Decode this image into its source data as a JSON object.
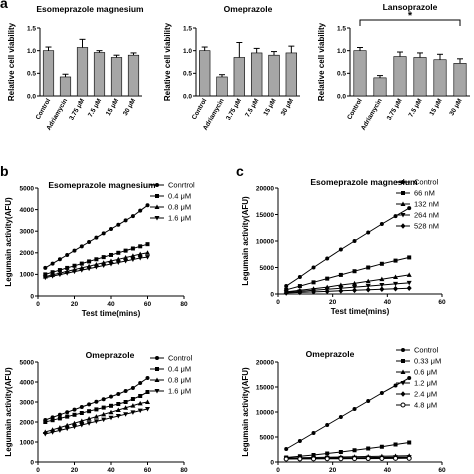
{
  "panel_labels": {
    "a": "a",
    "b": "b",
    "c": "c"
  },
  "chart_data": [
    {
      "type": "bar",
      "panel": "a",
      "title": "Esomeprazole magnesium",
      "ylabel": "Relative cell viability",
      "categories": [
        "Control",
        "Adriamycin",
        "3.75 μM",
        "7.5 μM",
        "15 μM",
        "30 μM"
      ],
      "values": [
        1.0,
        0.42,
        1.07,
        0.96,
        0.85,
        0.9
      ],
      "errors": [
        0.08,
        0.06,
        0.18,
        0.04,
        0.05,
        0.05
      ],
      "ylim": [
        0,
        1.5
      ],
      "yticks": [
        "0.0",
        "0.5",
        "1.0",
        "1.5"
      ],
      "color": "#a6a6a6"
    },
    {
      "type": "bar",
      "panel": "a",
      "title": "Omeprazole",
      "ylabel": "Relative cell viability",
      "categories": [
        "Control",
        "Adriamycin",
        "3.75 μM",
        "7.5 μM",
        "15 μM",
        "30 μM"
      ],
      "values": [
        1.0,
        0.42,
        0.85,
        0.95,
        0.9,
        0.95
      ],
      "errors": [
        0.08,
        0.05,
        0.33,
        0.1,
        0.08,
        0.15
      ],
      "ylim": [
        0,
        1.5
      ],
      "yticks": [
        "0.0",
        "0.5",
        "1.0",
        "1.5"
      ],
      "color": "#a6a6a6"
    },
    {
      "type": "bar",
      "panel": "a",
      "title": "Lansoprazole",
      "ylabel": "Relative cell viability",
      "categories": [
        "Control",
        "Adriamycin",
        "3.75 μM",
        "7.5 μM",
        "15 μM",
        "30 μM"
      ],
      "values": [
        1.0,
        0.4,
        0.87,
        0.85,
        0.8,
        0.72
      ],
      "errors": [
        0.07,
        0.05,
        0.1,
        0.1,
        0.12,
        0.1
      ],
      "ylim": [
        0,
        1.5
      ],
      "yticks": [
        "0.0",
        "0.5",
        "1.0",
        "1.5"
      ],
      "color": "#a6a6a6",
      "annotation": "*"
    },
    {
      "type": "line",
      "panel": "b",
      "title": "Esomeprazole magnesium",
      "xlabel": "Test time(mins)",
      "ylabel": "Legumain activity(AFU)",
      "xlim": [
        0,
        80
      ],
      "ylim": [
        0,
        5000
      ],
      "xticks": [
        "0",
        "20",
        "40",
        "60",
        "80"
      ],
      "yticks": [
        "0",
        "1000",
        "2000",
        "3000",
        "4000",
        "5000"
      ],
      "x": [
        4,
        8,
        12,
        16,
        20,
        24,
        28,
        32,
        36,
        40,
        44,
        48,
        52,
        56,
        60
      ],
      "series": [
        {
          "name": "Conrtrol",
          "marker": "circle",
          "values": [
            1300,
            1500,
            1700,
            1900,
            2100,
            2300,
            2500,
            2700,
            2900,
            3100,
            3300,
            3500,
            3700,
            3950,
            4200
          ]
        },
        {
          "name": "0.4 μM",
          "marker": "square",
          "values": [
            1000,
            1100,
            1200,
            1300,
            1400,
            1500,
            1600,
            1700,
            1800,
            1900,
            2000,
            2100,
            2200,
            2300,
            2400
          ]
        },
        {
          "name": "0.8 μM",
          "marker": "triangle-up",
          "values": [
            900,
            980,
            1060,
            1140,
            1220,
            1300,
            1380,
            1460,
            1540,
            1620,
            1700,
            1780,
            1860,
            1940,
            2000
          ]
        },
        {
          "name": "1.6 μM",
          "marker": "triangle-down",
          "values": [
            850,
            920,
            990,
            1060,
            1130,
            1200,
            1270,
            1340,
            1410,
            1480,
            1550,
            1620,
            1690,
            1760,
            1800
          ]
        }
      ]
    },
    {
      "type": "line",
      "panel": "c",
      "title": "Esomeprazole magnesium",
      "xlabel": "Test time(mins)",
      "ylabel": "Legumain activity(AFU)",
      "xlim": [
        0,
        60
      ],
      "ylim": [
        0,
        20000
      ],
      "xticks": [
        "0",
        "20",
        "40",
        "60"
      ],
      "yticks": [
        "0",
        "5000",
        "10000",
        "15000",
        "20000"
      ],
      "x": [
        3,
        8,
        13,
        18,
        23,
        28,
        33,
        38,
        43,
        48
      ],
      "series": [
        {
          "name": "Control",
          "marker": "circle",
          "values": [
            1500,
            3200,
            5000,
            6700,
            8400,
            10000,
            11600,
            13200,
            14700,
            16200
          ]
        },
        {
          "name": "66 nM",
          "marker": "square",
          "values": [
            800,
            1500,
            2200,
            2900,
            3600,
            4300,
            5000,
            5700,
            6300,
            6900
          ]
        },
        {
          "name": "132 nM",
          "marker": "triangle-up",
          "values": [
            400,
            700,
            1000,
            1300,
            1700,
            2000,
            2400,
            2800,
            3200,
            3600
          ]
        },
        {
          "name": "264 nM",
          "marker": "triangle-down",
          "values": [
            300,
            500,
            700,
            900,
            1100,
            1300,
            1500,
            1700,
            1900,
            2100
          ]
        },
        {
          "name": "528 nM",
          "marker": "diamond",
          "values": [
            200,
            300,
            400,
            500,
            600,
            700,
            800,
            900,
            1000,
            1100
          ]
        }
      ]
    },
    {
      "type": "line",
      "panel": "b",
      "title": "Omeprazole",
      "xlabel": "Test time(mins)",
      "ylabel": "Legumain activity(AFU)",
      "xlim": [
        0,
        80
      ],
      "ylim": [
        0,
        5000
      ],
      "xticks": [
        "0",
        "20",
        "40",
        "60",
        "80"
      ],
      "yticks": [
        "0",
        "1000",
        "2000",
        "3000",
        "4000",
        "5000"
      ],
      "x": [
        4,
        8,
        12,
        16,
        20,
        24,
        28,
        32,
        36,
        40,
        44,
        48,
        52,
        56,
        60
      ],
      "series": [
        {
          "name": "Control",
          "marker": "circle",
          "values": [
            2100,
            2230,
            2360,
            2490,
            2620,
            2750,
            2880,
            3010,
            3140,
            3270,
            3400,
            3550,
            3700,
            3950,
            4200
          ]
        },
        {
          "name": "0.4 μM",
          "marker": "square",
          "values": [
            2000,
            2090,
            2180,
            2270,
            2360,
            2450,
            2540,
            2630,
            2720,
            2810,
            2900,
            3000,
            3150,
            3300,
            3500
          ]
        },
        {
          "name": "0.8 μM",
          "marker": "triangle-up",
          "values": [
            1500,
            1610,
            1720,
            1830,
            1940,
            2050,
            2160,
            2270,
            2380,
            2490,
            2600,
            2710,
            2820,
            2930,
            3000
          ]
        },
        {
          "name": "1.6 μM",
          "marker": "triangle-down",
          "values": [
            1400,
            1490,
            1580,
            1670,
            1760,
            1850,
            1940,
            2030,
            2120,
            2210,
            2300,
            2390,
            2480,
            2570,
            2650
          ]
        }
      ]
    },
    {
      "type": "line",
      "panel": "c",
      "title": "Omeprazole",
      "xlabel": "Test time(mins)",
      "ylabel": "Legumain activity(AFU)",
      "xlim": [
        0,
        60
      ],
      "ylim": [
        0,
        20000
      ],
      "xticks": [
        "0",
        "20",
        "40",
        "60"
      ],
      "yticks": [
        "0",
        "5000",
        "10000",
        "15000",
        "20000"
      ],
      "x": [
        3,
        8,
        13,
        18,
        23,
        28,
        33,
        38,
        43,
        48
      ],
      "series": [
        {
          "name": "Control",
          "marker": "circle",
          "values": [
            2600,
            4200,
            5800,
            7400,
            9000,
            10600,
            12200,
            13800,
            15300,
            16800
          ]
        },
        {
          "name": "0.33 μM",
          "marker": "square",
          "values": [
            900,
            1150,
            1400,
            1700,
            2000,
            2350,
            2700,
            3050,
            3500,
            3900
          ]
        },
        {
          "name": "0.6 μM",
          "marker": "triangle-up",
          "values": [
            800,
            850,
            900,
            950,
            1000,
            1050,
            1100,
            1150,
            1200,
            1250
          ]
        },
        {
          "name": "1.2 μM",
          "marker": "triangle-down",
          "values": [
            700,
            730,
            760,
            790,
            820,
            850,
            880,
            910,
            940,
            970
          ]
        },
        {
          "name": "2.4 μM",
          "marker": "diamond",
          "values": [
            650,
            670,
            690,
            710,
            730,
            750,
            770,
            790,
            810,
            830
          ]
        },
        {
          "name": "4.8 μM",
          "marker": "circle-open",
          "values": [
            600,
            615,
            630,
            645,
            660,
            675,
            690,
            705,
            720,
            735
          ]
        }
      ]
    }
  ]
}
